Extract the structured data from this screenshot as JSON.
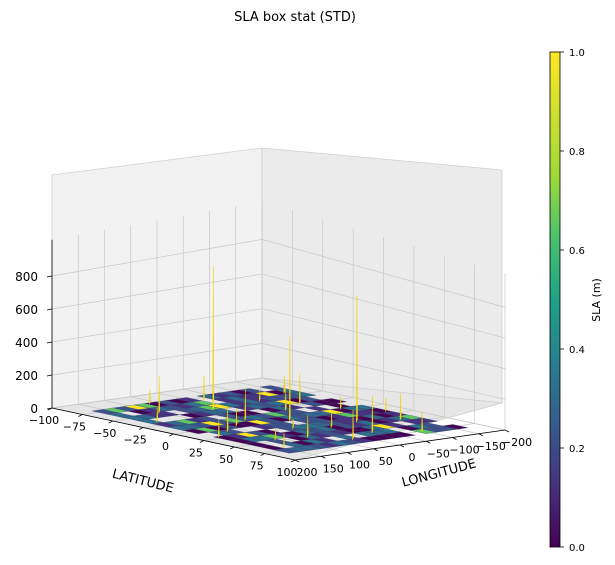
{
  "chart_data": {
    "type": "surface3d",
    "title": "SLA box stat (STD)",
    "xlabel": "LATITUDE",
    "ylabel": "LONGITUDE",
    "zlabel": "",
    "x_ticks": [
      "−100",
      "−75",
      "−50",
      "−25",
      "0",
      "25",
      "50",
      "75",
      "100"
    ],
    "y_ticks": [
      "200",
      "150",
      "100",
      "50",
      "0",
      "−50",
      "−100",
      "−150",
      "−200"
    ],
    "z_ticks": [
      "0",
      "200",
      "400",
      "600",
      "800"
    ],
    "xlim": [
      -100,
      100
    ],
    "ylim": [
      -200,
      200
    ],
    "zlim": [
      0,
      1000
    ],
    "colorbar": {
      "label": "SLA (m)",
      "ticks": [
        "0.0",
        "0.2",
        "0.4",
        "0.6",
        "0.8",
        "1.0"
      ],
      "range": [
        0,
        1
      ],
      "colormap": "viridis"
    },
    "peaks": [
      {
        "lat": -45,
        "lon": 20,
        "z": 870
      },
      {
        "lat": 30,
        "lon": -80,
        "z": 790
      },
      {
        "lat": 5,
        "lon": -10,
        "z": 520
      },
      {
        "lat": 60,
        "lon": -40,
        "z": 230
      },
      {
        "lat": -55,
        "lon": 100,
        "z": 220
      },
      {
        "lat": -10,
        "lon": 40,
        "z": 200
      },
      {
        "lat": 70,
        "lon": 20,
        "z": 190
      },
      {
        "lat": -30,
        "lon": -110,
        "z": 180
      },
      {
        "lat": 40,
        "lon": -140,
        "z": 160
      },
      {
        "lat": 10,
        "lon": 120,
        "z": 150
      },
      {
        "lat": -70,
        "lon": -20,
        "z": 140
      },
      {
        "lat": 50,
        "lon": 60,
        "z": 140
      },
      {
        "lat": -20,
        "lon": -60,
        "z": 130
      },
      {
        "lat": 75,
        "lon": -100,
        "z": 120
      },
      {
        "lat": 20,
        "lon": 160,
        "z": 110
      },
      {
        "lat": -60,
        "lon": -150,
        "z": 100
      },
      {
        "lat": 0,
        "lon": 80,
        "z": 100
      },
      {
        "lat": 35,
        "lon": -20,
        "z": 95
      },
      {
        "lat": -35,
        "lon": 150,
        "z": 90
      },
      {
        "lat": 65,
        "lon": 140,
        "z": 85
      },
      {
        "lat": -80,
        "lon": 60,
        "z": 80
      },
      {
        "lat": 15,
        "lon": -170,
        "z": 75
      },
      {
        "lat": -5,
        "lon": -130,
        "z": 70
      },
      {
        "lat": 45,
        "lon": 110,
        "z": 65
      },
      {
        "lat": -50,
        "lon": -80,
        "z": 60
      },
      {
        "lat": 25,
        "lon": 30,
        "z": 55
      }
    ]
  }
}
